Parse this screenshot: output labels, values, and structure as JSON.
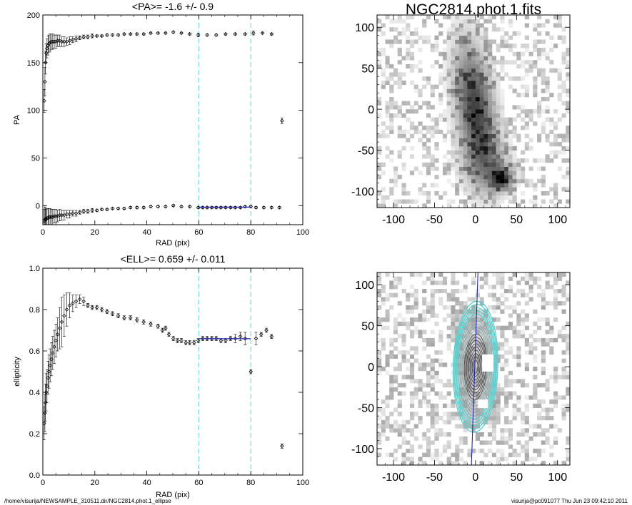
{
  "chart_data": [
    {
      "id": "pa",
      "type": "scatter",
      "title": "<PA>=  -1.6 +/-   0.9",
      "xlabel": "RAD (pix)",
      "ylabel": "PA",
      "xlim": [
        0,
        100
      ],
      "ylim": [
        -20,
        200
      ],
      "xticks": [
        0,
        20,
        40,
        60,
        80,
        100
      ],
      "yticks": [
        0,
        50,
        100,
        150,
        200
      ],
      "grid": false,
      "vlines": [
        60,
        80
      ],
      "series": [
        {
          "x": [
            0.5,
            0.8,
            1.0,
            1.3,
            1.6,
            2.0,
            2.4,
            2.8,
            3.3,
            3.8,
            4.4,
            5.0,
            5.7,
            6.5,
            7.3,
            8.2,
            9.2,
            10.3,
            11.5,
            12.8,
            14.2,
            15.7,
            17.3,
            19.0,
            20.8,
            22.7,
            24.7,
            26.8,
            29.0,
            31.3,
            33.7,
            36.2,
            38.8,
            41.5,
            44.3,
            47.2,
            50.2,
            53.3,
            56.5,
            59.8,
            63.2,
            66.7,
            70.3,
            74.0,
            77.8,
            81.0,
            84.5,
            88.0,
            92.0
          ],
          "y": [
            110,
            130,
            150,
            160,
            165,
            168,
            170,
            171,
            172,
            172,
            172,
            172,
            173,
            173,
            172,
            172,
            172,
            173,
            174,
            175,
            176,
            177,
            177,
            178,
            178,
            178,
            179,
            179,
            179,
            180,
            180,
            180,
            180,
            181,
            181,
            181,
            182,
            181,
            180,
            179,
            179,
            179,
            180,
            180,
            180,
            181,
            181,
            180,
            89
          ],
          "yerr": [
            12,
            15,
            12,
            10,
            10,
            10,
            9,
            9,
            8,
            8,
            7,
            7,
            6,
            6,
            5,
            5,
            4,
            4,
            3,
            3,
            2,
            2,
            2,
            2,
            1,
            1,
            1,
            1,
            1,
            1,
            1,
            1,
            1,
            1,
            1,
            1,
            1,
            1,
            1,
            2,
            1,
            1,
            1,
            1,
            1,
            2,
            1,
            1,
            3
          ]
        },
        {
          "x": [
            0.5,
            0.8,
            1.0,
            1.3,
            1.6,
            2.0,
            2.4,
            2.8,
            3.3,
            3.8,
            4.4,
            5.0,
            5.7,
            6.5,
            7.3,
            8.2,
            9.2,
            10.3,
            11.5,
            12.8,
            14.2,
            15.7,
            17.3,
            19.0,
            20.8,
            22.7,
            24.7,
            26.8,
            29.0,
            31.3,
            33.7,
            36.2,
            38.8,
            41.5,
            44.3,
            47.2,
            50.2,
            53.3,
            56.5,
            59.8,
            61.5,
            63.2,
            65.0,
            66.7,
            68.5,
            70.3,
            72.2,
            74.0,
            76.0,
            77.8,
            80.0,
            82.0,
            85.0,
            88.0,
            91.0
          ],
          "y": [
            -16,
            -15,
            -14,
            -14,
            -13,
            -13,
            -12,
            -12,
            -12,
            -12,
            -11,
            -11,
            -11,
            -10,
            -10,
            -10,
            -9,
            -9,
            -8,
            -8,
            -7,
            -6,
            -6,
            -5,
            -5,
            -4,
            -4,
            -3,
            -3,
            -3,
            -2,
            -2,
            -2,
            -1,
            -1,
            -1,
            0,
            -1,
            -1,
            -2,
            -2,
            -2,
            -2,
            -2,
            -2,
            -2,
            -2,
            -2,
            -2,
            -1,
            -1,
            -2,
            -2,
            -2,
            -2
          ],
          "yerr": [
            12,
            15,
            12,
            10,
            10,
            10,
            9,
            9,
            8,
            8,
            7,
            7,
            6,
            6,
            5,
            5,
            4,
            4,
            3,
            3,
            2,
            2,
            2,
            2,
            1,
            1,
            1,
            1,
            1,
            1,
            1,
            1,
            1,
            1,
            1,
            1,
            1,
            1,
            1,
            1,
            1,
            1,
            1,
            1,
            1,
            1,
            1,
            1,
            1,
            1,
            1,
            1,
            1,
            1,
            1
          ]
        }
      ],
      "fit": {
        "x": [
          60,
          80
        ],
        "y": [
          -1.6,
          -1.6
        ]
      }
    },
    {
      "id": "ell",
      "type": "scatter",
      "title": "<ELL>= 0.659 +/-  0.011",
      "xlabel": "RAD (pix)",
      "ylabel": "ellipticity",
      "xlim": [
        0,
        100
      ],
      "ylim": [
        0.0,
        1.0
      ],
      "xticks": [
        0,
        20,
        40,
        60,
        80,
        100
      ],
      "yticks": [
        0.0,
        0.2,
        0.4,
        0.6,
        0.8,
        1.0
      ],
      "grid": false,
      "vlines": [
        60,
        80
      ],
      "series": [
        {
          "x": [
            0.5,
            0.8,
            1.0,
            1.3,
            1.6,
            2.0,
            2.4,
            2.8,
            3.3,
            3.8,
            4.4,
            5.0,
            5.7,
            6.5,
            7.3,
            8.2,
            9.2,
            10.3,
            11.5,
            12.8,
            14.2,
            15.7,
            17.3,
            19.0,
            20.8,
            22.7,
            24.7,
            26.8,
            29.0,
            31.3,
            33.7,
            36.2,
            38.8,
            41.5,
            44.3,
            46.0,
            47.2,
            48.5,
            50.2,
            51.8,
            53.3,
            55.0,
            56.5,
            58.2,
            59.8,
            61.5,
            63.2,
            65.0,
            66.7,
            68.5,
            70.3,
            72.2,
            74.0,
            76.0,
            77.8,
            80.0,
            82.0,
            84.0,
            86.0,
            88.0,
            92.0
          ],
          "y": [
            0.25,
            0.3,
            0.35,
            0.4,
            0.43,
            0.47,
            0.5,
            0.53,
            0.56,
            0.59,
            0.62,
            0.65,
            0.68,
            0.71,
            0.74,
            0.77,
            0.8,
            0.82,
            0.83,
            0.84,
            0.85,
            0.84,
            0.82,
            0.81,
            0.81,
            0.8,
            0.79,
            0.78,
            0.77,
            0.76,
            0.76,
            0.75,
            0.74,
            0.73,
            0.72,
            0.7,
            0.71,
            0.68,
            0.66,
            0.65,
            0.65,
            0.64,
            0.64,
            0.64,
            0.65,
            0.66,
            0.66,
            0.66,
            0.66,
            0.65,
            0.65,
            0.66,
            0.66,
            0.67,
            0.66,
            0.5,
            0.66,
            0.68,
            0.7,
            0.67,
            0.14
          ],
          "yerr": [
            0.08,
            0.09,
            0.09,
            0.09,
            0.08,
            0.08,
            0.08,
            0.08,
            0.08,
            0.08,
            0.08,
            0.08,
            0.08,
            0.1,
            0.12,
            0.1,
            0.08,
            0.06,
            0.04,
            0.03,
            0.02,
            0.02,
            0.01,
            0.01,
            0.01,
            0.01,
            0.01,
            0.01,
            0.01,
            0.01,
            0.01,
            0.01,
            0.01,
            0.01,
            0.01,
            0.01,
            0.01,
            0.01,
            0.01,
            0.01,
            0.01,
            0.01,
            0.01,
            0.01,
            0.01,
            0.01,
            0.01,
            0.01,
            0.01,
            0.01,
            0.01,
            0.01,
            0.02,
            0.02,
            0.03,
            0.01,
            0.03,
            0.01,
            0.01,
            0.01,
            0.01
          ]
        }
      ],
      "fit": {
        "x": [
          60,
          80
        ],
        "y": [
          0.659,
          0.659
        ]
      }
    }
  ],
  "images": [
    {
      "id": "img-top",
      "title": "NGC2814.phot.1.fits",
      "xlim": [
        -120,
        115
      ],
      "ylim": [
        -120,
        115
      ],
      "xticks": [
        -100,
        -50,
        0,
        50,
        100
      ],
      "yticks": [
        -100,
        -50,
        0,
        50,
        100
      ]
    },
    {
      "id": "img-bottom",
      "title": "",
      "xlim": [
        -120,
        115
      ],
      "ylim": [
        -120,
        115
      ],
      "xticks": [
        -100,
        -50,
        0,
        50,
        100
      ],
      "yticks": [
        -100,
        -50,
        0,
        50,
        100
      ]
    }
  ],
  "colors": {
    "vline": "#7fd8d8",
    "fit": "#2222aa",
    "ellipse": "#5fd0d0",
    "marker": "#000000"
  },
  "footer": {
    "left": "/home/visurija/NEWSAMPLE_310511.dir/NGC2814.phot.1_ellipse",
    "right": "visurija@pc091077  Thu Jun 23 09:42:10 2011"
  }
}
